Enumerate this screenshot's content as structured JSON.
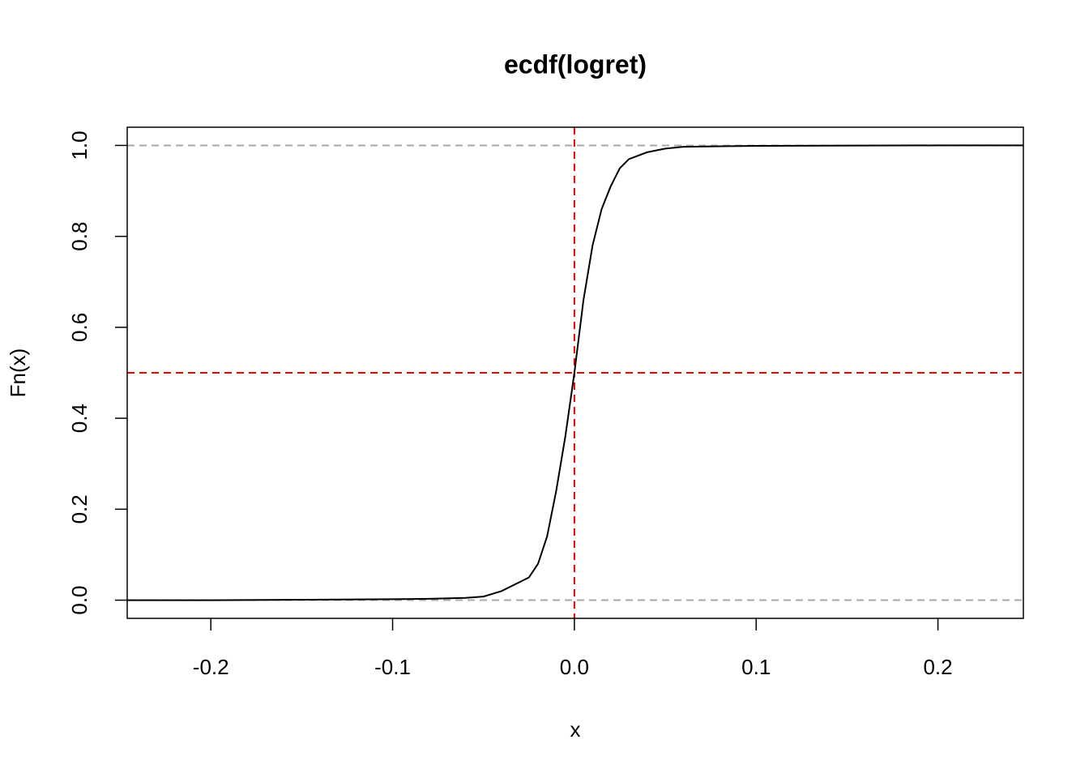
{
  "chart_data": {
    "type": "line",
    "title": "ecdf(logret)",
    "xlabel": "x",
    "ylabel": "Fn(x)",
    "x": [
      -0.246,
      -0.2,
      -0.15,
      -0.1,
      -0.08,
      -0.06,
      -0.05,
      -0.04,
      -0.03,
      -0.025,
      -0.02,
      -0.015,
      -0.01,
      -0.005,
      0,
      0.005,
      0.01,
      0.015,
      0.02,
      0.025,
      0.03,
      0.04,
      0.05,
      0.06,
      0.1,
      0.2,
      0.247
    ],
    "series": [
      {
        "color": "#000000",
        "values": [
          0,
          0,
          0.001,
          0.002,
          0.003,
          0.005,
          0.008,
          0.02,
          0.04,
          0.05,
          0.08,
          0.14,
          0.24,
          0.36,
          0.5,
          0.66,
          0.78,
          0.86,
          0.91,
          0.95,
          0.97,
          0.985,
          0.993,
          0.997,
          0.999,
          1,
          1
        ]
      }
    ],
    "xlim": [
      -0.246,
      0.247
    ],
    "ylim": [
      -0.04,
      1.04
    ],
    "xticks": [
      -0.2,
      -0.1,
      {
        "value": 0,
        "label": "0.0"
      },
      0.1,
      0.2
    ],
    "yticks": [
      {
        "value": 0,
        "label": "0.0"
      },
      0.2,
      0.4,
      0.6,
      0.8,
      {
        "value": 1,
        "label": "1.0"
      }
    ],
    "hlines": [
      {
        "value": 0,
        "color": "#aaaaaa"
      },
      {
        "value": 1,
        "color": "#aaaaaa"
      },
      {
        "value": 0.5,
        "color": "#ee0000"
      }
    ],
    "vlines": [
      {
        "value": 0,
        "color": "#ee0000"
      }
    ]
  }
}
